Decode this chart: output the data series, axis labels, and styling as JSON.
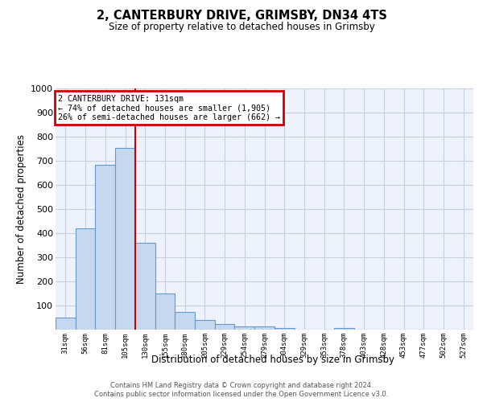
{
  "title1": "2, CANTERBURY DRIVE, GRIMSBY, DN34 4TS",
  "title2": "Size of property relative to detached houses in Grimsby",
  "xlabel": "Distribution of detached houses by size in Grimsby",
  "ylabel": "Number of detached properties",
  "bar_labels": [
    "31sqm",
    "56sqm",
    "81sqm",
    "105sqm",
    "130sqm",
    "155sqm",
    "180sqm",
    "205sqm",
    "229sqm",
    "254sqm",
    "279sqm",
    "304sqm",
    "329sqm",
    "353sqm",
    "378sqm",
    "403sqm",
    "428sqm",
    "453sqm",
    "477sqm",
    "502sqm",
    "527sqm"
  ],
  "bar_heights": [
    50,
    420,
    685,
    755,
    360,
    150,
    75,
    40,
    25,
    15,
    15,
    8,
    0,
    0,
    8,
    0,
    0,
    0,
    0,
    0,
    0
  ],
  "bar_color": "#c5d8f0",
  "bar_edge_color": "#6699cc",
  "vline_x_index": 3.5,
  "vline_color": "#cc0000",
  "ylim": [
    0,
    1000
  ],
  "yticks": [
    0,
    100,
    200,
    300,
    400,
    500,
    600,
    700,
    800,
    900,
    1000
  ],
  "annotation_box_text": "2 CANTERBURY DRIVE: 131sqm\n← 74% of detached houses are smaller (1,905)\n26% of semi-detached houses are larger (662) →",
  "annotation_box_color": "#cc0000",
  "grid_color": "#c8cfe0",
  "background_color": "#edf2fc",
  "footer1": "Contains HM Land Registry data © Crown copyright and database right 2024.",
  "footer2": "Contains public sector information licensed under the Open Government Licence v3.0."
}
